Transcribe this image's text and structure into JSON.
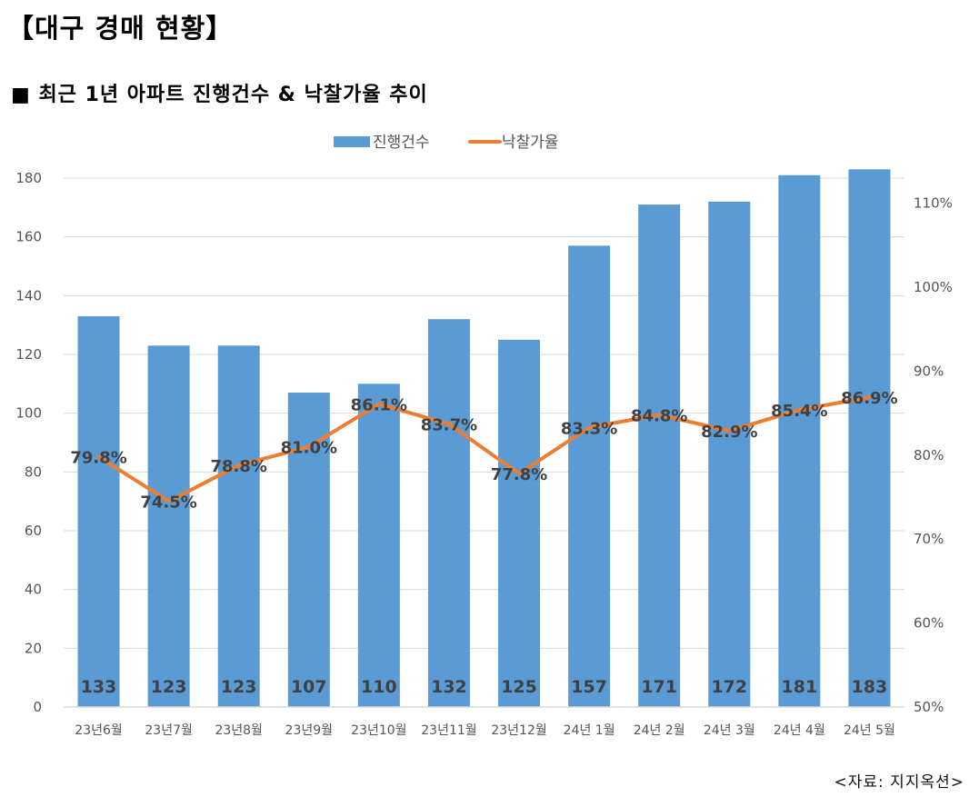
{
  "header": {
    "title": "【대구 경매 현황】",
    "subtitle": "■ 최근 1년 아파트 진행건수 & 낙찰가율 추이"
  },
  "source": "<자료: 지지옥션>",
  "chart_data": {
    "type": "bar+line",
    "categories": [
      "23년6월",
      "23년7월",
      "23년8월",
      "23년9월",
      "23년10월",
      "23년11월",
      "23년12월",
      "24년 1월",
      "24년 2월",
      "24년 3월",
      "24년 4월",
      "24년 5월"
    ],
    "series": [
      {
        "name": "진행건수",
        "type": "bar",
        "axis": "left",
        "color": "#5B9BD5",
        "values": [
          133,
          123,
          123,
          107,
          110,
          132,
          125,
          157,
          171,
          172,
          181,
          183
        ],
        "labels": [
          "133",
          "123",
          "123",
          "107",
          "110",
          "132",
          "125",
          "157",
          "171",
          "172",
          "181",
          "183"
        ]
      },
      {
        "name": "낙찰가율",
        "type": "line",
        "axis": "right",
        "color": "#ED7D31",
        "values": [
          79.8,
          74.5,
          78.8,
          81.0,
          86.1,
          83.7,
          77.8,
          83.3,
          84.8,
          82.9,
          85.4,
          86.9
        ],
        "labels": [
          "79.8%",
          "74.5%",
          "78.8%",
          "81.0%",
          "86.1%",
          "83.7%",
          "77.8%",
          "83.3%",
          "84.8%",
          "82.9%",
          "85.4%",
          "86.9%"
        ]
      }
    ],
    "left_axis": {
      "ylim": [
        0,
        180
      ],
      "ticks": [
        "0",
        "20",
        "40",
        "60",
        "80",
        "100",
        "120",
        "140",
        "160",
        "180"
      ]
    },
    "right_axis": {
      "ylim": [
        50,
        113
      ],
      "ticks": [
        "50%",
        "60%",
        "70%",
        "80%",
        "90%",
        "100%",
        "110%"
      ]
    },
    "legend": {
      "placement": "top-center",
      "items": [
        "진행건수",
        "낙찰가율"
      ]
    },
    "grid": true
  }
}
